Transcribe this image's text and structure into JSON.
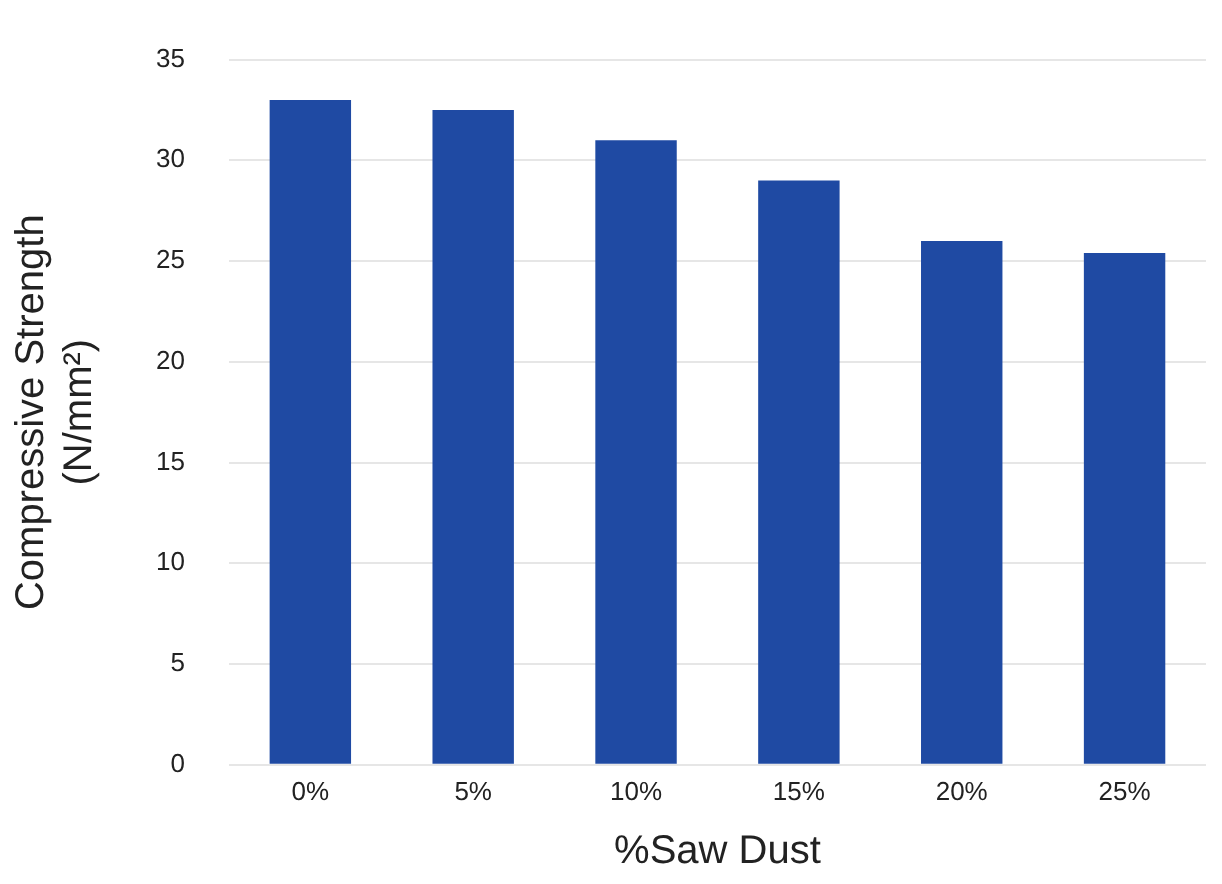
{
  "chart_data": {
    "type": "bar",
    "xlabel": "%Saw Dust",
    "ylabel": "Compressive Strength\n(N/mm²)",
    "categories": [
      "0%",
      "5%",
      "10%",
      "15%",
      "20%",
      "25%"
    ],
    "values": [
      33,
      32.5,
      31,
      29,
      26,
      25.4
    ],
    "color": "#1f4aa3",
    "ylim": [
      0,
      35
    ],
    "yticks": [
      0,
      5,
      10,
      15,
      20,
      25,
      30,
      35
    ],
    "grid": "y",
    "legend": false
  }
}
